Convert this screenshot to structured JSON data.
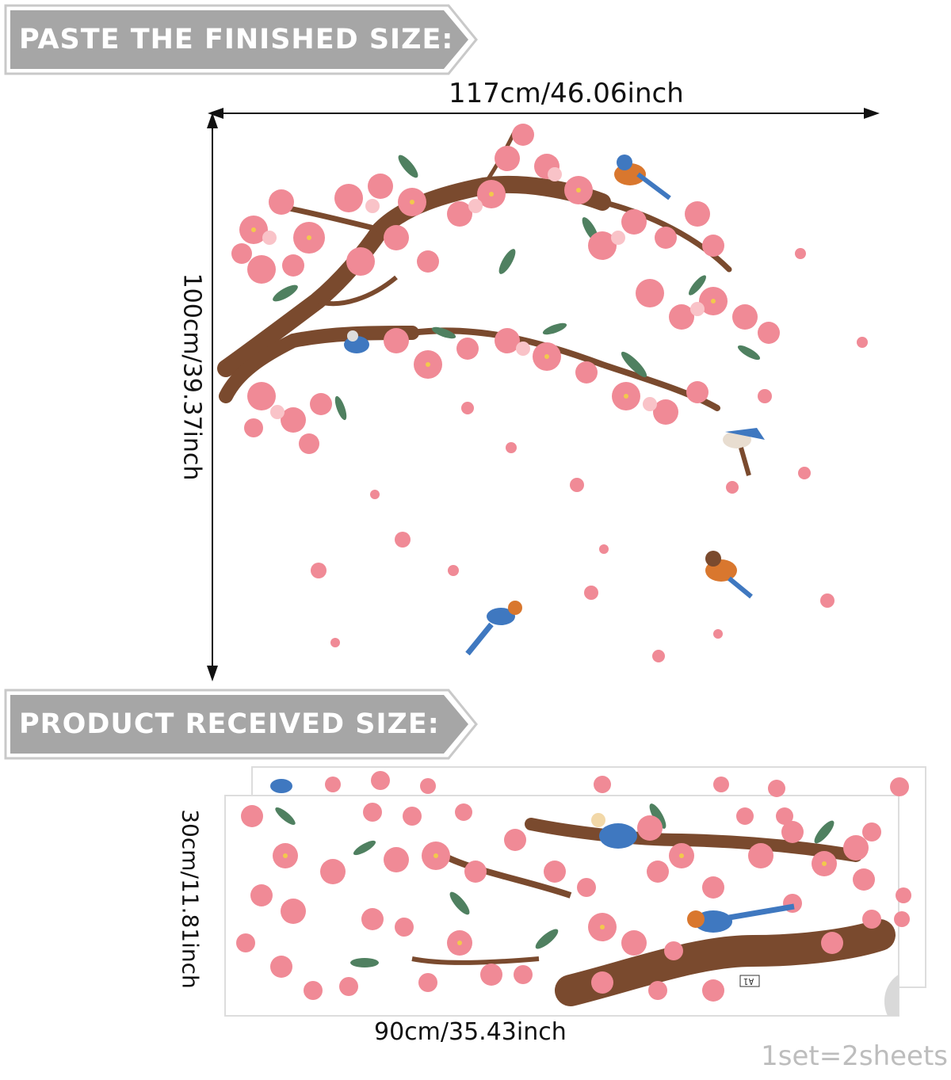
{
  "banners": {
    "finished": "PASTE THE FINISHED SIZE:",
    "received": "PRODUCT RECEIVED SIZE:"
  },
  "finished_size": {
    "width_label": "117cm/46.06inch",
    "height_label": "100cm/39.37inch"
  },
  "received_size": {
    "width_label": "90cm/35.43inch",
    "height_label": "30cm/11.81inch",
    "sheet_tag": "A1"
  },
  "footer": "1set=2sheets",
  "colors": {
    "banner_gray": "#a6a6a6",
    "blossom_pink": "#f08a96",
    "blossom_light": "#f9c3c8",
    "branch_brown": "#7a4a2e",
    "leaf_green": "#4f8060",
    "bird_blue": "#3f78c0",
    "bird_orange": "#d9772e"
  }
}
